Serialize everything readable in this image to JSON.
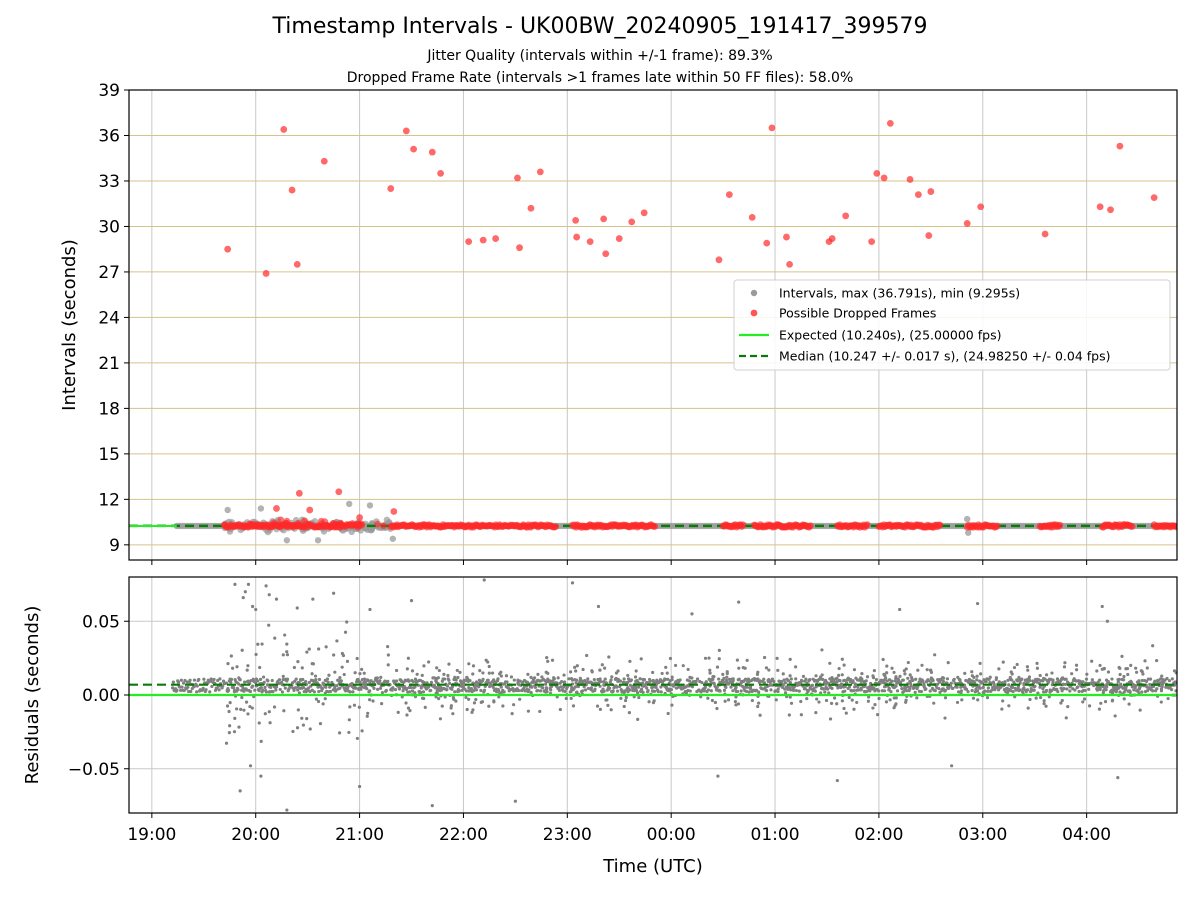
{
  "header": {
    "title": "Timestamp Intervals - UK00BW_20240905_191417_399579",
    "subtitle_jitter": "Jitter Quality (intervals within +/-1 frame): 89.3%",
    "subtitle_dropped": "Dropped Frame Rate (intervals >1 frames late within 50 FF files): 58.0%"
  },
  "colors": {
    "interval_gray": "#9a9a9a",
    "dropped_red": "#ff2a2a",
    "expected_green": "#22ee22",
    "median_darkgreen": "#0a7a0a",
    "hgrid_tan": "#d6c38a",
    "vgrid": "#c8c8c8",
    "residual_gray": "#808080"
  },
  "chart_data": [
    {
      "type": "scatter",
      "panel": "intervals",
      "ylabel": "Intervals (seconds)",
      "ylim": [
        8,
        39
      ],
      "yticks": [
        9,
        12,
        15,
        18,
        21,
        24,
        27,
        30,
        33,
        36,
        39
      ],
      "yticklabels": [
        "9",
        "12",
        "15",
        "18",
        "21",
        "24",
        "27",
        "30",
        "33",
        "36",
        "39"
      ],
      "xlim_hours": [
        18.78,
        28.87
      ],
      "grid": true,
      "legend_position": "center-right",
      "legend": [
        "Intervals, max (36.791s), min (9.295s)",
        "Possible Dropped Frames",
        "Expected (10.240s), (25.00000 fps)",
        "Median (10.247 +/- 0.017 s), (24.98250 +/- 0.04 fps)"
      ],
      "expected_interval": 10.24,
      "median_interval": 10.247,
      "baseline_span_hours": [
        19.24,
        28.87
      ],
      "red_runs_hours": [
        [
          19.7,
          21.0
        ],
        [
          21.3,
          22.0
        ],
        [
          22.0,
          22.3
        ],
        [
          22.3,
          22.9
        ],
        [
          23.05,
          23.85
        ],
        [
          24.5,
          24.7
        ],
        [
          24.8,
          25.35
        ],
        [
          25.6,
          25.9
        ],
        [
          26.0,
          26.6
        ],
        [
          26.85,
          27.15
        ],
        [
          27.55,
          27.75
        ],
        [
          28.15,
          28.45
        ],
        [
          28.65,
          28.87
        ]
      ],
      "gray_cluster_hours": [
        19.7,
        21.3
      ],
      "dropped_frames": {
        "time_hours": [
          19.73,
          20.1,
          20.27,
          20.35,
          20.4,
          20.66,
          21.3,
          21.45,
          21.52,
          21.7,
          21.78,
          22.05,
          22.19,
          22.31,
          22.52,
          22.54,
          22.65,
          22.74,
          23.08,
          23.09,
          23.22,
          23.35,
          23.37,
          23.5,
          23.62,
          23.74,
          24.46,
          24.56,
          24.78,
          24.92,
          24.97,
          25.11,
          25.14,
          25.52,
          25.55,
          25.68,
          25.93,
          25.98,
          26.05,
          26.11,
          26.3,
          26.38,
          26.48,
          26.5,
          26.85,
          26.98,
          27.6,
          28.13,
          28.23,
          28.32,
          28.65
        ],
        "interval_s": [
          28.5,
          26.9,
          36.4,
          32.4,
          27.5,
          34.3,
          32.5,
          36.3,
          35.1,
          34.9,
          33.5,
          29.0,
          29.1,
          29.2,
          33.2,
          28.6,
          31.2,
          33.6,
          30.4,
          29.3,
          29.0,
          30.5,
          28.2,
          29.2,
          30.3,
          30.9,
          27.8,
          32.1,
          30.6,
          28.9,
          36.5,
          29.3,
          27.5,
          29.0,
          29.2,
          30.7,
          29.0,
          33.5,
          33.2,
          36.8,
          33.1,
          32.1,
          29.4,
          32.3,
          30.2,
          31.3,
          29.5,
          31.3,
          31.1,
          35.3,
          31.9
        ]
      },
      "low_dropped_frames": {
        "time_hours": [
          20.2,
          20.42,
          20.52,
          20.8,
          21.0,
          21.33
        ],
        "interval_s": [
          11.4,
          12.4,
          11.3,
          12.5,
          10.8,
          11.2
        ]
      }
    },
    {
      "type": "scatter",
      "panel": "residuals",
      "ylabel": "Residuals (seconds)",
      "xlabel": "Time (UTC)",
      "ylim": [
        -0.08,
        0.08
      ],
      "yticks": [
        -0.05,
        0.0,
        0.05
      ],
      "yticklabels": [
        "−0.05",
        "0.00",
        "0.05"
      ],
      "xlim_hours": [
        18.78,
        28.87
      ],
      "xticks_hours": [
        19,
        20,
        21,
        22,
        23,
        24,
        25,
        26,
        27,
        28
      ],
      "xticklabels": [
        "19:00",
        "20:00",
        "21:00",
        "22:00",
        "23:00",
        "00:00",
        "01:00",
        "02:00",
        "03:00",
        "04:00"
      ],
      "grid": true,
      "expected_residual": 0.0,
      "median_residual": 0.007,
      "core_band": [
        0.002,
        0.011
      ],
      "sample_points": {
        "time_hours": [
          19.8,
          19.85,
          19.88,
          19.9,
          19.93,
          19.95,
          19.97,
          20.0,
          20.05,
          20.1,
          20.13,
          20.2,
          20.3,
          20.4,
          20.55,
          20.75,
          21.0,
          21.1,
          21.5,
          21.7,
          22.2,
          22.5,
          23.05,
          23.3,
          24.2,
          24.45,
          24.65,
          25.6,
          26.2,
          26.7,
          26.95,
          28.15,
          28.2,
          28.3
        ],
        "residual_s": [
          0.075,
          -0.065,
          0.066,
          0.07,
          0.075,
          -0.048,
          0.06,
          0.058,
          -0.055,
          0.074,
          0.068,
          0.065,
          -0.078,
          0.059,
          0.065,
          0.069,
          -0.062,
          0.058,
          0.064,
          -0.075,
          0.078,
          -0.072,
          0.076,
          0.06,
          0.055,
          -0.055,
          0.063,
          -0.058,
          0.058,
          -0.048,
          0.062,
          0.06,
          0.05,
          -0.056
        ]
      }
    }
  ]
}
